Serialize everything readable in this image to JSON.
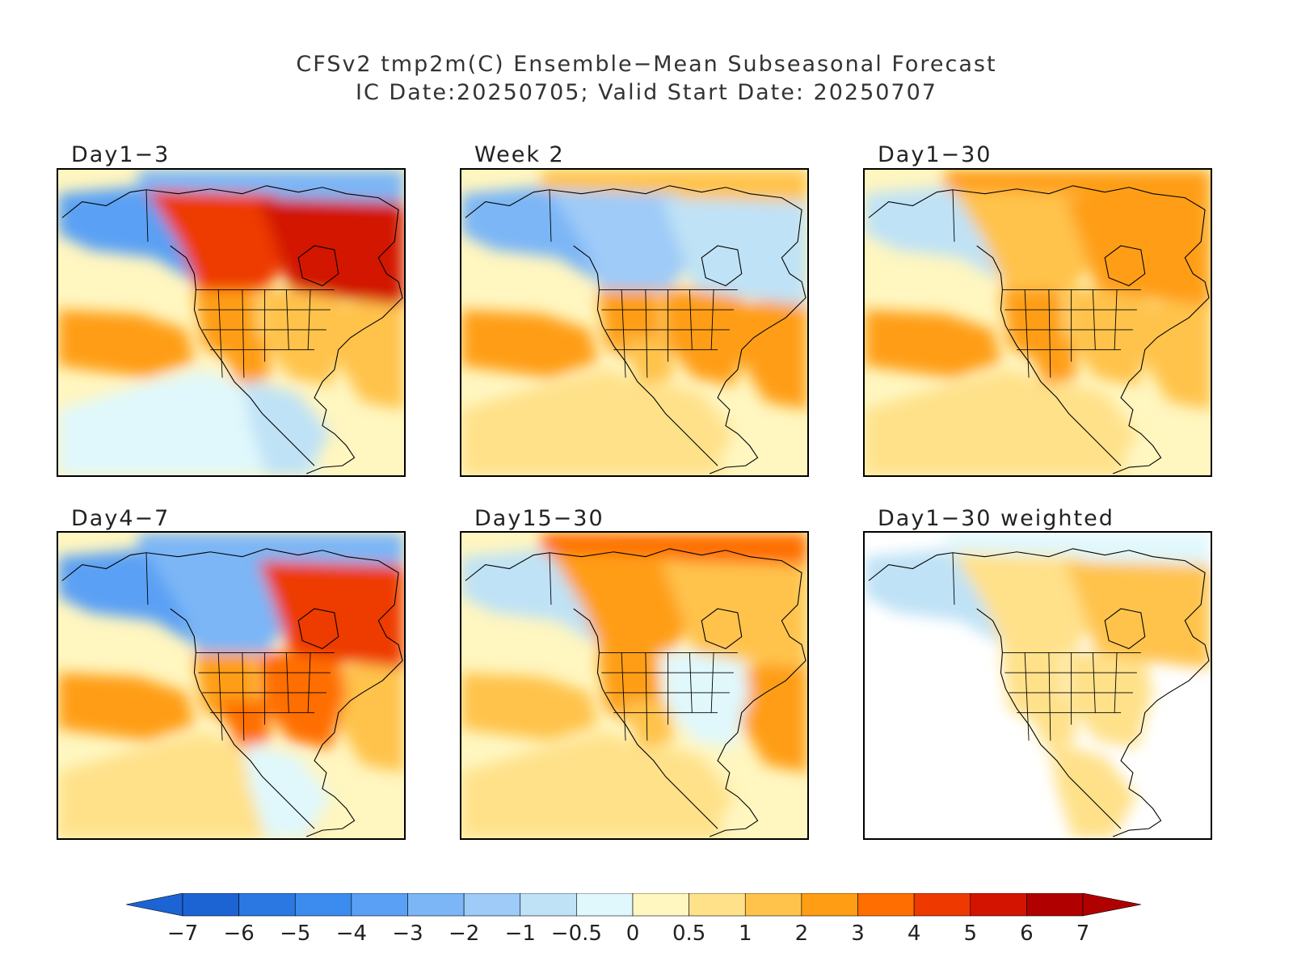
{
  "title": {
    "line1": "CFSv2 tmp2m(C) Ensemble−Mean Subseasonal Forecast",
    "line2": "IC Date:20250705; Valid Start Date: 20250707"
  },
  "panels": [
    {
      "id": "day1-3",
      "label": "Day1−3",
      "anomaly": {
        "nw_canada": 4,
        "hudson_bay_west": 5,
        "alaska": -4,
        "arctic": -3,
        "pacific_band": 2,
        "pacific_south": -0.5,
        "west_us": 2,
        "east_us": 1,
        "southwest_us": 2,
        "atlantic": 1,
        "mexico": -1
      }
    },
    {
      "id": "week2",
      "label": "Week 2",
      "anomaly": {
        "nw_canada": -2,
        "hudson_bay_west": -1,
        "alaska": -3,
        "arctic": 1,
        "pacific_band": 2,
        "pacific_south": 0.5,
        "west_us": 2,
        "east_us": 2,
        "southwest_us": 1,
        "atlantic": 2,
        "mexico": 0.5
      }
    },
    {
      "id": "day1-30",
      "label": "Day1−30",
      "anomaly": {
        "nw_canada": 1,
        "hudson_bay_west": 2,
        "alaska": -1,
        "arctic": 2,
        "pacific_band": 2,
        "pacific_south": 0.5,
        "west_us": 2,
        "east_us": 1,
        "southwest_us": 2,
        "atlantic": 1,
        "mexico": 0.5
      }
    },
    {
      "id": "day4-7",
      "label": "Day4−7",
      "anomaly": {
        "nw_canada": -3,
        "hudson_bay_west": 4,
        "alaska": -4,
        "arctic": -3,
        "pacific_band": 2,
        "pacific_south": 0.5,
        "west_us": 2,
        "east_us": 3,
        "southwest_us": 3,
        "atlantic": 1,
        "mexico": -0.5
      }
    },
    {
      "id": "day15-30",
      "label": "Day15−30",
      "anomaly": {
        "nw_canada": 2,
        "hudson_bay_west": 1,
        "alaska": -1,
        "arctic": 3,
        "pacific_band": 1,
        "pacific_south": 0.5,
        "west_us": 2,
        "east_us": -0.5,
        "southwest_us": 1,
        "atlantic": 2,
        "mexico": 0.5
      }
    },
    {
      "id": "day1-30-weighted",
      "label": "Day1−30 weighted",
      "anomaly": {
        "nw_canada": 0.5,
        "hudson_bay_west": 1,
        "alaska": -1,
        "arctic": -0.5,
        "pacific_band": null,
        "pacific_south": null,
        "west_us": 0.5,
        "east_us": 0.5,
        "southwest_us": 0.5,
        "atlantic": null,
        "mexico": 0.5
      }
    }
  ],
  "colorbar": {
    "tick_labels": [
      "−7",
      "−6",
      "−5",
      "−4",
      "−3",
      "−2",
      "−1",
      "−0.5",
      "0",
      "0.5",
      "1",
      "2",
      "3",
      "4",
      "5",
      "6",
      "7"
    ],
    "colors": [
      "#1c64d4",
      "#2c78e2",
      "#3c8cf0",
      "#5aa0f4",
      "#7cb6f6",
      "#9ecbf8",
      "#bfe2f6",
      "#e0f8fc",
      "#fff6c0",
      "#ffe18a",
      "#ffc34c",
      "#ff9e14",
      "#ff6e00",
      "#ee3a00",
      "#d21400",
      "#b00000"
    ],
    "under_color": "#1c64d4",
    "over_color": "#b00000"
  }
}
